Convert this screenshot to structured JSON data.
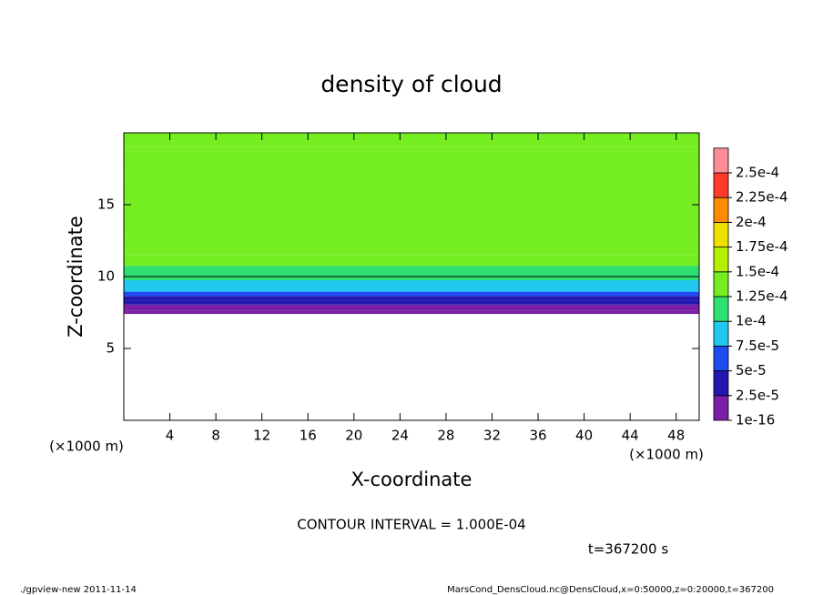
{
  "chart_data": {
    "type": "contourf",
    "title": "density of cloud",
    "xlabel": "X-coordinate",
    "ylabel": "Z-coordinate",
    "x_unit": "(×1000 m)",
    "xlim": [
      0,
      50
    ],
    "xticks": [
      4,
      8,
      12,
      16,
      20,
      24,
      28,
      32,
      36,
      40,
      44,
      48
    ],
    "ylim": [
      0,
      20
    ],
    "yticks": [
      5,
      10,
      15
    ],
    "z": [
      7.4,
      7.9,
      8.2,
      8.5,
      8.8,
      9.1,
      9.5,
      10,
      10.5,
      11,
      12,
      14,
      16,
      18,
      20
    ],
    "values": [
      1e-06,
      1.5e-05,
      3e-05,
      4e-05,
      6e-05,
      8e-05,
      9.5e-05,
      0.0001,
      0.00012,
      0.00013,
      0.00014,
      0.000145,
      0.00014,
      0.000135,
      0.000125
    ],
    "contour_level": 0.0001,
    "colorbar": {
      "levels": [
        {
          "value": 1e-16,
          "label": "1e-16"
        },
        {
          "value": 2.5e-05,
          "label": "2.5e-5"
        },
        {
          "value": 5e-05,
          "label": "5e-5"
        },
        {
          "value": 7.5e-05,
          "label": "7.5e-5"
        },
        {
          "value": 0.0001,
          "label": "1e-4"
        },
        {
          "value": 0.000125,
          "label": "1.25e-4"
        },
        {
          "value": 0.00015,
          "label": "1.5e-4"
        },
        {
          "value": 0.000175,
          "label": "1.75e-4"
        },
        {
          "value": 0.0002,
          "label": "2e-4"
        },
        {
          "value": 0.000225,
          "label": "2.25e-4"
        },
        {
          "value": 0.00025,
          "label": "2.5e-4"
        }
      ],
      "colors": [
        "#7b1fa8",
        "#2418b0",
        "#1e4cf0",
        "#20c8f0",
        "#2ee070",
        "#74ee20",
        "#b4f000",
        "#f0e000",
        "#ff8c00",
        "#ff3a2a",
        "#ff8c96"
      ]
    },
    "annotation": "CONTOUR INTERVAL = 1.000E-04",
    "time_label": "t=367200 s",
    "footer_left": "./gpview-new  2011-11-14",
    "footer_right": "MarsCond_DensCloud.nc@DensCloud,x=0:50000,z=0:20000,t=367200"
  }
}
